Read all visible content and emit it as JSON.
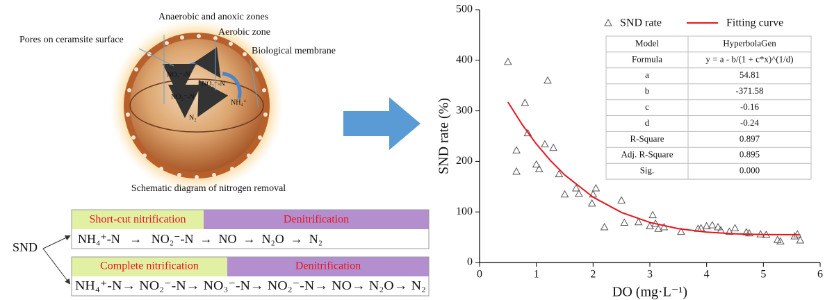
{
  "diagram": {
    "labels": {
      "zones": "Anaerobic and anoxic zones",
      "aerobic": "Aerobic zone",
      "pores": "Pores on ceramsite surface",
      "membrane": "Biological membrane"
    },
    "inner": {
      "no3": "NO₃⁻-N",
      "no2_left": "NO₂⁻-N",
      "no2_right": "NO₂⁻-N",
      "n2": "N₂",
      "nh4": "NH₄⁺"
    },
    "caption": "Schematic diagram of nitrogen removal",
    "snd": "SND",
    "rows": [
      {
        "left_title": "Short-cut nitrification",
        "right_title": "Denitrification",
        "formula": "NH₄⁺-N   →   NO₂⁻-N  →  NO  →  N₂O  →  N₂"
      },
      {
        "left_title": "Complete nitrification",
        "right_title": "Denitrification",
        "formula": "NH₄⁺-N→ NO₂⁻-N→ NO₃⁻-N→ NO₂⁻-N→ NO→ N₂O→ N₂"
      }
    ]
  },
  "chart_data": {
    "type": "scatter",
    "x_label": "DO (mg·L⁻¹)",
    "y_label": "SND rate (%)",
    "xlim": [
      0,
      6
    ],
    "xticks": [
      0,
      1,
      2,
      3,
      4,
      5,
      6
    ],
    "ylim": [
      0,
      500
    ],
    "yticks": [
      0,
      100,
      200,
      300,
      400,
      500
    ],
    "legend": "top",
    "series": [
      {
        "name": "SND rate",
        "type": "scatter",
        "color": "#555555",
        "x": [
          0.5,
          0.65,
          0.65,
          0.8,
          0.85,
          1.0,
          1.05,
          1.15,
          1.2,
          1.3,
          1.4,
          1.5,
          1.7,
          1.75,
          1.98,
          2.0,
          2.05,
          2.2,
          2.5,
          2.55,
          2.8,
          3.0,
          3.05,
          3.1,
          3.15,
          3.25,
          3.55,
          3.85,
          3.9,
          4.0,
          4.1,
          4.2,
          4.25,
          4.4,
          4.5,
          4.7,
          4.75,
          4.95,
          5.05,
          5.25,
          5.3,
          5.55,
          5.6,
          5.65
        ],
        "values": [
          397,
          222,
          180,
          316,
          256,
          194,
          185,
          234,
          360,
          227,
          175,
          135,
          147,
          136,
          117,
          135,
          147,
          70,
          123,
          79,
          80,
          72,
          94,
          77,
          67,
          70,
          61,
          67,
          68,
          72,
          74,
          70,
          64,
          61,
          68,
          60,
          58,
          56,
          55,
          45,
          42,
          52,
          56,
          44
        ]
      },
      {
        "name": "Fitting curve",
        "type": "line",
        "color": "#e8141c",
        "x": [
          0.5,
          0.75,
          1,
          1.25,
          1.5,
          2,
          2.5,
          3,
          3.5,
          4,
          4.5,
          5,
          5.65
        ],
        "values": [
          317.3,
          273.0,
          234.5,
          201.5,
          173.2,
          129.3,
          99.0,
          79.2,
          67.0,
          60.1,
          56.7,
          55.3,
          54.8
        ]
      }
    ],
    "fit_table": {
      "rows": [
        [
          "Model",
          "HyperbolaGen"
        ],
        [
          "Formula",
          "y = a - b/(1 + c*x)^(1/d)"
        ],
        [
          "a",
          "54.81"
        ],
        [
          "b",
          "-371.58"
        ],
        [
          "c",
          "-0.16"
        ],
        [
          "d",
          "-0.24"
        ],
        [
          "R-Square",
          "0.897"
        ],
        [
          "Adj. R-Square",
          "0.895"
        ],
        [
          "Sig.",
          "0.000"
        ]
      ]
    }
  }
}
